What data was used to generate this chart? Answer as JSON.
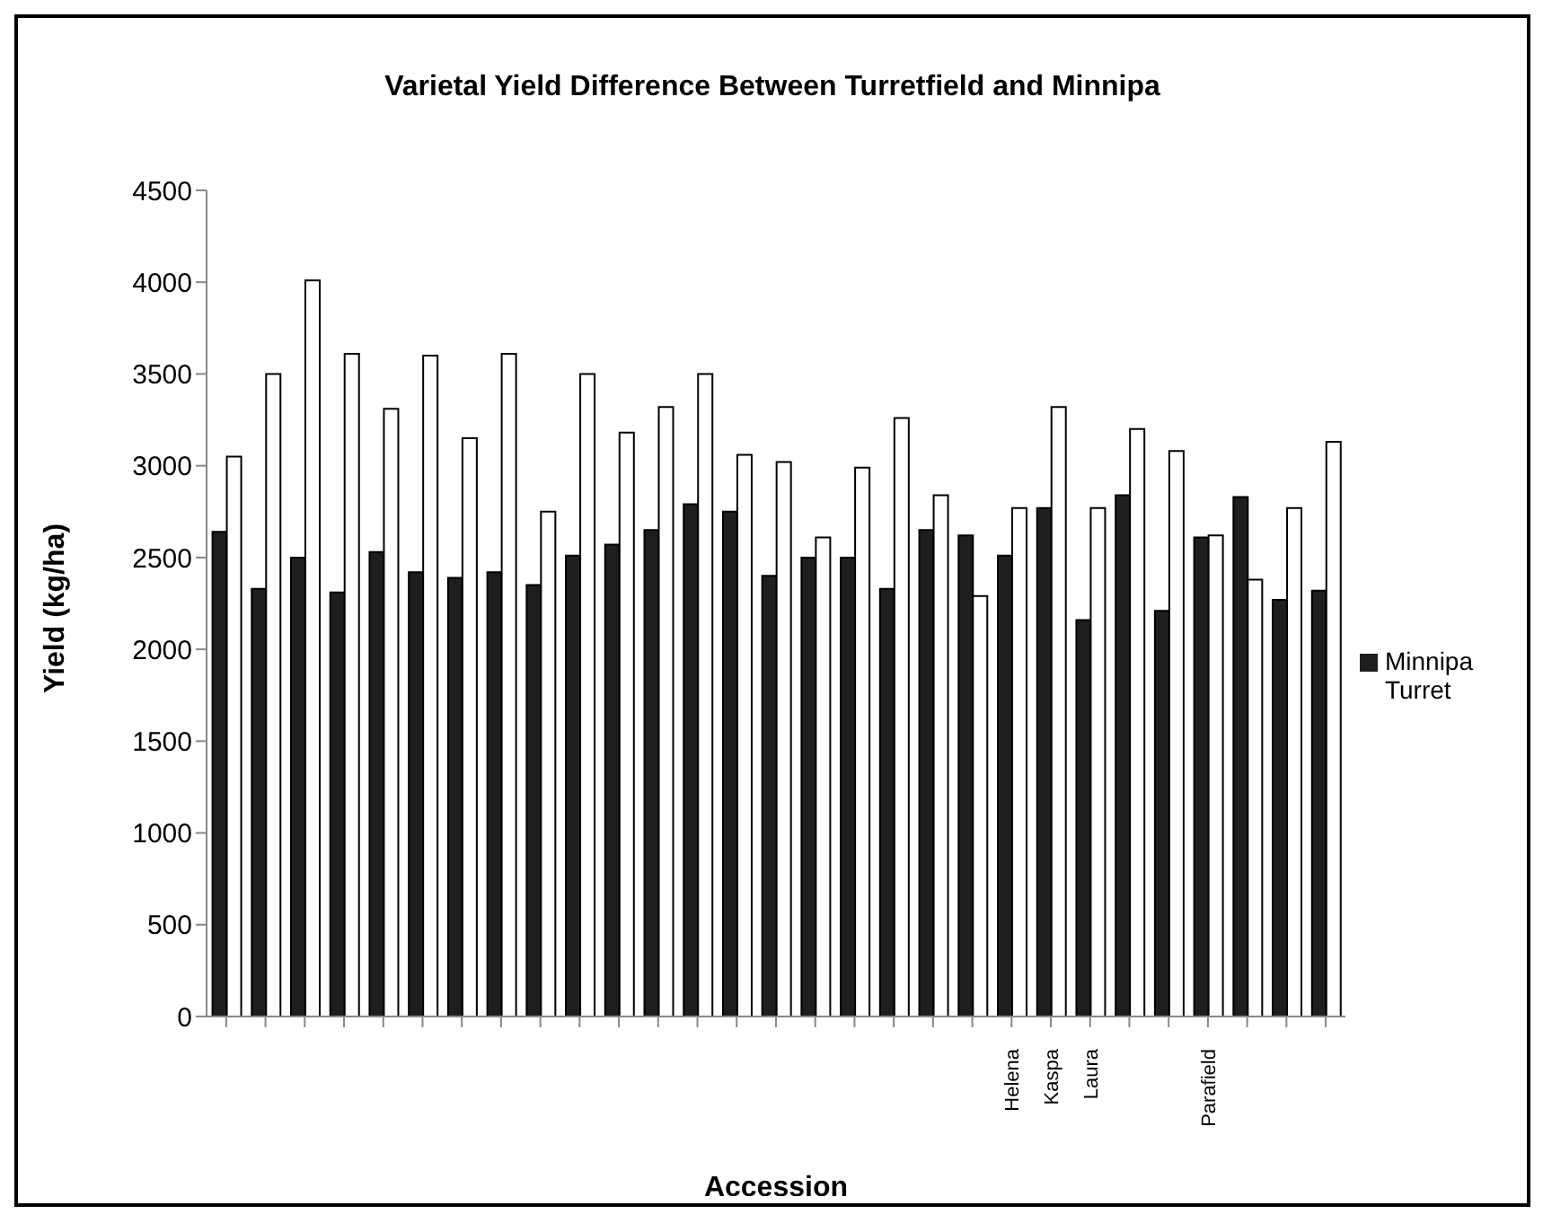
{
  "chart_data": {
    "type": "bar",
    "title": "Varietal Yield Difference Between Turretfield and Minnipa",
    "xlabel": "Accession",
    "ylabel": "Yield (kg/ha)",
    "categories": [
      null,
      null,
      null,
      null,
      null,
      null,
      null,
      null,
      null,
      null,
      null,
      null,
      null,
      null,
      null,
      null,
      null,
      null,
      null,
      null,
      "Helena",
      "Kaspa",
      "Laura",
      null,
      null,
      "Parafield",
      null,
      null,
      null
    ],
    "series": [
      {
        "name": "Minnipa",
        "color": "#1e1e1e",
        "values": [
          2640,
          2330,
          2500,
          2310,
          2530,
          2420,
          2390,
          2420,
          2350,
          2510,
          2570,
          2650,
          2790,
          2750,
          2400,
          2500,
          2500,
          2330,
          2650,
          2620,
          2510,
          2770,
          2160,
          2840,
          2210,
          2610,
          2830,
          2270,
          2320
        ]
      },
      {
        "name": "Turret",
        "color": "#ffffff",
        "values": [
          3050,
          3500,
          4010,
          3610,
          3310,
          3600,
          3150,
          3610,
          2750,
          3500,
          3180,
          3320,
          3500,
          3060,
          3020,
          2610,
          2990,
          3260,
          2840,
          2290,
          2770,
          3320,
          2770,
          3200,
          3080,
          2620,
          2380,
          2770,
          3130
        ]
      }
    ],
    "ylim": [
      0,
      4500
    ],
    "yticks": [
      0,
      500,
      1000,
      1500,
      2000,
      2500,
      3000,
      3500,
      4000,
      4500
    ],
    "grid": false,
    "legend": "right"
  }
}
